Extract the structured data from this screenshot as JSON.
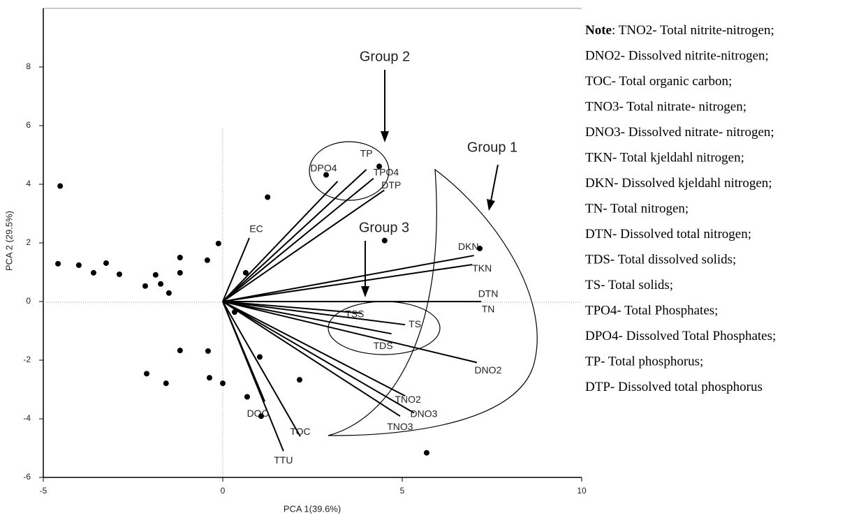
{
  "chart_data": {
    "type": "biplot",
    "xlabel": "PCA 1(39.6%)",
    "ylabel": "PCA 2 (29.5%)",
    "xlim": [
      -5,
      10
    ],
    "ylim": [
      -6,
      10
    ],
    "xticks": [
      -5,
      0,
      5,
      10
    ],
    "yticks": [
      -6,
      -4,
      -2,
      0,
      2,
      4,
      6,
      8
    ],
    "color": "#000000",
    "scores": {
      "x": [
        -4.53,
        -4.59,
        -4.01,
        -3.6,
        -3.25,
        -2.88,
        -2.16,
        -1.87,
        -1.73,
        -1.5,
        -1.19,
        -1.19,
        -0.43,
        -0.12,
        0.64,
        1.25,
        4.51,
        2.88,
        4.36,
        7.16,
        0.33,
        -1.19,
        -0.41,
        1.03,
        -2.12,
        -1.58,
        -0.37,
        0,
        0.68,
        1.07,
        2.14,
        5.68
      ],
      "y": [
        3.94,
        1.29,
        1.24,
        0.98,
        1.31,
        0.93,
        0.53,
        0.91,
        0.6,
        0.29,
        1.5,
        0.98,
        1.41,
        1.98,
        0.98,
        3.56,
        2.08,
        4.32,
        4.61,
        1.81,
        -0.36,
        -1.67,
        -1.69,
        -1.89,
        -2.46,
        -2.79,
        -2.6,
        -2.79,
        -3.25,
        -3.91,
        -2.67,
        -5.16
      ]
    },
    "loadings": [
      {
        "name": "DPO4",
        "x": 3.2,
        "y": 4.1
      },
      {
        "name": "TP",
        "x": 4.0,
        "y": 4.5
      },
      {
        "name": "TPO4",
        "x": 4.2,
        "y": 4.2
      },
      {
        "name": "DTP",
        "x": 4.5,
        "y": 3.8
      },
      {
        "name": "EC",
        "x": 0.74,
        "y": 2.17
      },
      {
        "name": "DKN",
        "x": 7.0,
        "y": 1.57
      },
      {
        "name": "TKN",
        "x": 6.95,
        "y": 1.26
      },
      {
        "name": "DTN",
        "x": 7.2,
        "y": 0
      },
      {
        "name": "TN",
        "x": 7.2,
        "y": 0
      },
      {
        "name": "TSS",
        "x": 3.87,
        "y": -0.4
      },
      {
        "name": "TS",
        "x": 5.08,
        "y": -0.79
      },
      {
        "name": "TDS",
        "x": 4.7,
        "y": -1.1
      },
      {
        "name": "DNO2",
        "x": 7.08,
        "y": -2.08
      },
      {
        "name": "TNO2",
        "x": 5.08,
        "y": -3.22
      },
      {
        "name": "DNO3",
        "x": 5.33,
        "y": -3.8
      },
      {
        "name": "TNO3",
        "x": 4.94,
        "y": -3.91
      },
      {
        "name": "TOC",
        "x": 2.16,
        "y": -4.6
      },
      {
        "name": "TTU",
        "x": 1.69,
        "y": -5.1
      },
      {
        "name": "DOC",
        "x": 1.17,
        "y": -3.41
      }
    ],
    "annotations": [
      "Group 1",
      "Group 2",
      "Group 3"
    ]
  },
  "note": {
    "label": "Note",
    "lines": [
      ": TNO2- Total nitrite-nitrogen;",
      "DNO2- Dissolved nitrite-nitrogen;",
      "TOC- Total organic carbon;",
      "TNO3- Total nitrate- nitrogen;",
      "DNO3- Dissolved nitrate- nitrogen;",
      "TKN- Total kjeldahl nitrogen;",
      "DKN- Dissolved kjeldahl nitrogen;",
      "TN- Total nitrogen;",
      "DTN- Dissolved total nitrogen;",
      "TDS- Total dissolved solids;",
      "TS- Total solids;",
      "TPO4- Total Phosphates;",
      "DPO4- Dissolved Total Phosphates;",
      "TP- Total phosphorus;",
      "DTP- Dissolved total phosphorus"
    ]
  }
}
